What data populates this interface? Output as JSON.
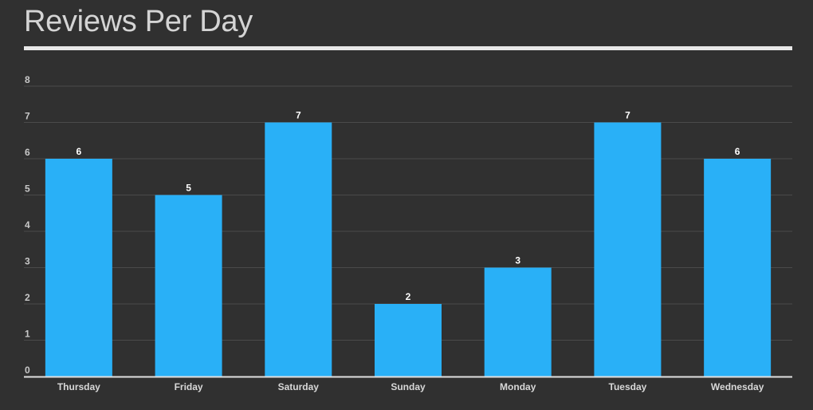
{
  "chart_data": {
    "type": "bar",
    "title": "Reviews Per Day",
    "categories": [
      "Thursday",
      "Friday",
      "Saturday",
      "Sunday",
      "Monday",
      "Tuesday",
      "Wednesday"
    ],
    "values": [
      6,
      5,
      7,
      2,
      3,
      7,
      6
    ],
    "ylim": [
      0,
      8
    ],
    "yticks": [
      "0",
      "1",
      "2",
      "3",
      "4",
      "5",
      "6",
      "7",
      "8"
    ],
    "grid": true,
    "bar_color": "#29b0f7",
    "xlabel": "",
    "ylabel": ""
  }
}
